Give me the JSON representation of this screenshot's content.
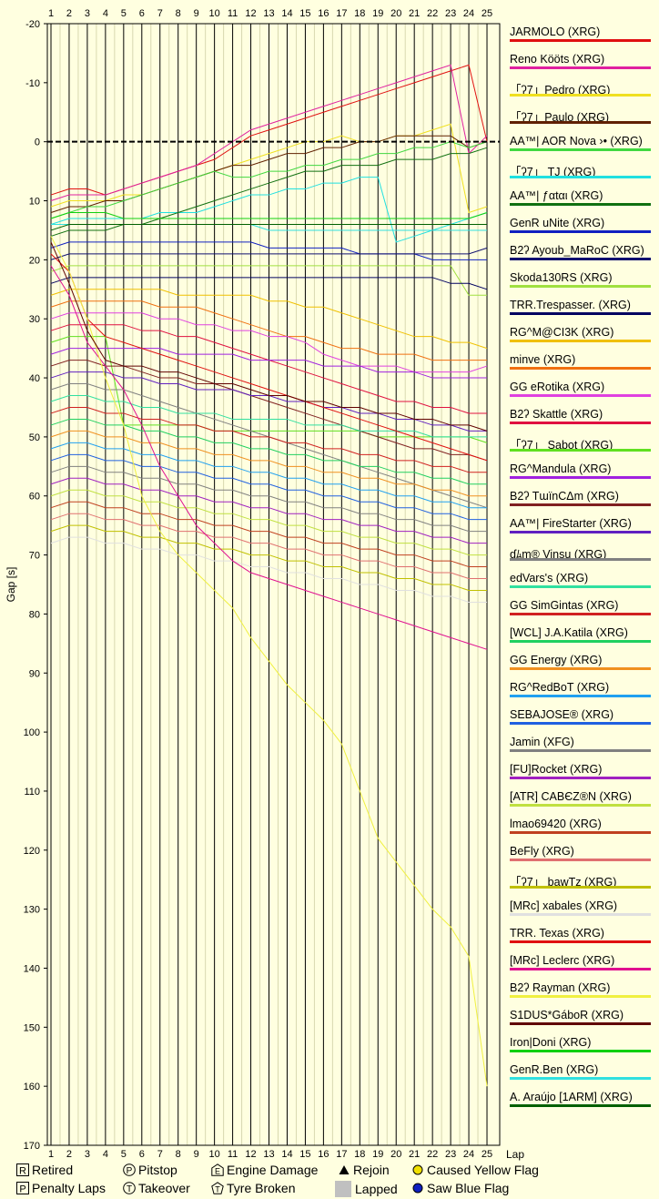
{
  "chart_data": {
    "type": "line",
    "xlabel": "Lap",
    "ylabel": "Gap [s]",
    "x_ticks": [
      1,
      2,
      3,
      4,
      5,
      6,
      7,
      8,
      9,
      10,
      11,
      12,
      13,
      14,
      15,
      16,
      17,
      18,
      19,
      20,
      21,
      22,
      23,
      24,
      25
    ],
    "y_ticks": [
      -20,
      -10,
      0,
      10,
      20,
      30,
      40,
      50,
      60,
      70,
      80,
      90,
      100,
      110,
      120,
      130,
      140,
      150,
      160,
      170
    ],
    "xlim": [
      1,
      25.5
    ],
    "ylim": [
      -20,
      170
    ],
    "series": [
      {
        "name": "JARMOLO (XRG)",
        "color": "#e01010",
        "values": [
          9,
          8,
          8,
          9,
          8,
          7,
          6,
          5,
          4,
          3,
          1,
          -1,
          -2,
          -3,
          -4,
          -5,
          -6,
          -7,
          -8,
          -9,
          -10,
          -11,
          -12,
          -13,
          0
        ]
      },
      {
        "name": "Reno Kööts (XRG)",
        "color": "#e020a0",
        "values": [
          10,
          9,
          9,
          9,
          8,
          7,
          6,
          5,
          4,
          2,
          0,
          -2,
          -3,
          -4,
          -5,
          -6,
          -7,
          -8,
          -9,
          -10,
          -11,
          -12,
          -13,
          2,
          -1
        ]
      },
      {
        "name": "「ʔ7」Pedro (XRG)",
        "color": "#f0e020",
        "values": [
          11,
          10,
          10,
          10,
          9,
          9,
          8,
          7,
          6,
          5,
          4,
          3,
          2,
          1,
          0,
          0,
          -1,
          0,
          0,
          -1,
          -1,
          -2,
          -3,
          12,
          11
        ]
      },
      {
        "name": "「ʔ7」Paulo (XRG)",
        "color": "#602000",
        "values": [
          12,
          11,
          11,
          10,
          10,
          9,
          8,
          7,
          6,
          5,
          4,
          4,
          3,
          2,
          2,
          1,
          1,
          0,
          0,
          -1,
          -1,
          -1,
          -1,
          1,
          0
        ]
      },
      {
        "name": "AA™| AOR Nova ›• (XRG)",
        "color": "#40d840",
        "values": [
          13,
          12,
          11,
          11,
          10,
          9,
          8,
          7,
          6,
          5,
          6,
          6,
          5,
          5,
          4,
          4,
          3,
          3,
          2,
          2,
          1,
          1,
          0,
          1,
          0
        ]
      },
      {
        "name": "「ʔ7」 TJ (XRG)",
        "color": "#20e0e0",
        "values": [
          14,
          13,
          13,
          13,
          13,
          13,
          12,
          12,
          12,
          11,
          10,
          9,
          9,
          8,
          8,
          7,
          7,
          6,
          6,
          17,
          16,
          15,
          14,
          13,
          12
        ]
      },
      {
        "name": "AA™| ƒαtαι (XRG)",
        "color": "#107010",
        "values": [
          16,
          15,
          15,
          15,
          14,
          14,
          13,
          12,
          11,
          10,
          9,
          8,
          7,
          6,
          5,
          5,
          4,
          4,
          4,
          3,
          3,
          3,
          2,
          2,
          1
        ]
      },
      {
        "name": "GenR uNite (XRG)",
        "color": "#1020c0",
        "values": [
          18,
          17,
          17,
          17,
          17,
          17,
          17,
          17,
          17,
          17,
          17,
          17,
          18,
          18,
          18,
          18,
          18,
          19,
          19,
          19,
          19,
          20,
          20,
          20,
          20
        ]
      },
      {
        "name": "B2ʔ Ayoub_MaRoC (XRG)",
        "color": "#101070",
        "values": [
          20,
          19,
          19,
          19,
          19,
          19,
          19,
          19,
          19,
          19,
          19,
          19,
          19,
          19,
          19,
          19,
          19,
          19,
          19,
          19,
          19,
          19,
          19,
          19,
          18
        ]
      },
      {
        "name": "Skoda130RS (XRG)",
        "color": "#a0e040",
        "values": [
          22,
          21,
          21,
          21,
          21,
          21,
          21,
          21,
          21,
          21,
          21,
          21,
          21,
          21,
          21,
          21,
          21,
          21,
          21,
          21,
          21,
          21,
          21,
          26,
          26
        ]
      },
      {
        "name": "TRR.Trespasser. (XRG)",
        "color": "#000060",
        "values": [
          24,
          23,
          23,
          23,
          23,
          23,
          23,
          23,
          23,
          23,
          23,
          23,
          23,
          23,
          23,
          23,
          23,
          23,
          23,
          23,
          23,
          23,
          24,
          24,
          25
        ]
      },
      {
        "name": "RG^M@CI3K (XRG)",
        "color": "#f0c000",
        "values": [
          26,
          25,
          25,
          25,
          25,
          25,
          25,
          26,
          26,
          26,
          26,
          26,
          27,
          27,
          28,
          28,
          29,
          30,
          31,
          32,
          33,
          33,
          34,
          34,
          35
        ]
      },
      {
        "name": "minve (XRG)",
        "color": "#f07010",
        "values": [
          28,
          27,
          27,
          27,
          27,
          27,
          28,
          28,
          28,
          29,
          30,
          31,
          32,
          33,
          33,
          34,
          35,
          35,
          36,
          36,
          36,
          37,
          37,
          37,
          37
        ]
      },
      {
        "name": "GG eRotika (XRG)",
        "color": "#e040e0",
        "values": [
          30,
          29,
          29,
          29,
          29,
          29,
          30,
          30,
          31,
          31,
          32,
          32,
          33,
          33,
          34,
          36,
          37,
          38,
          38,
          38,
          39,
          39,
          39,
          39,
          38
        ]
      },
      {
        "name": "B2ʔ Skattle (XRG)",
        "color": "#e01040",
        "values": [
          32,
          31,
          31,
          31,
          31,
          32,
          32,
          33,
          33,
          34,
          35,
          36,
          37,
          38,
          39,
          40,
          41,
          42,
          43,
          44,
          44,
          45,
          45,
          46,
          46
        ]
      },
      {
        "name": "「ʔ7」 Sabot (XRG)",
        "color": "#60e020",
        "values": [
          34,
          33,
          33,
          33,
          48,
          48,
          48,
          48,
          48,
          49,
          49,
          49,
          49,
          49,
          49,
          49,
          49,
          49,
          50,
          50,
          50,
          50,
          50,
          50,
          51
        ]
      },
      {
        "name": "RG^Mandula (XRG)",
        "color": "#a020e0",
        "values": [
          36,
          35,
          35,
          35,
          35,
          35,
          35,
          36,
          36,
          36,
          36,
          37,
          37,
          37,
          37,
          38,
          38,
          38,
          39,
          39,
          39,
          40,
          40,
          40,
          40
        ]
      },
      {
        "name": "B2ʔ TɯïnCΔm (XRG)",
        "color": "#802020",
        "values": [
          38,
          37,
          37,
          38,
          38,
          39,
          40,
          40,
          41,
          41,
          42,
          43,
          44,
          45,
          46,
          47,
          48,
          49,
          50,
          51,
          52,
          52,
          53,
          53,
          54
        ]
      },
      {
        "name": "AA™| FireStarter (XRG)",
        "color": "#6020c0",
        "values": [
          40,
          39,
          39,
          39,
          40,
          40,
          41,
          41,
          42,
          42,
          42,
          43,
          43,
          44,
          44,
          45,
          45,
          46,
          46,
          47,
          47,
          48,
          48,
          49,
          49
        ]
      },
      {
        "name": "ɗﾑm® Vinsu (XRG)",
        "color": "#808080",
        "values": [
          42,
          41,
          41,
          42,
          42,
          43,
          44,
          45,
          46,
          47,
          48,
          49,
          50,
          51,
          52,
          53,
          54,
          55,
          56,
          57,
          58,
          59,
          60,
          61,
          62
        ]
      },
      {
        "name": "edVars's (XRG)",
        "color": "#30e0a0",
        "values": [
          44,
          43,
          43,
          44,
          44,
          45,
          45,
          46,
          46,
          46,
          47,
          47,
          47,
          47,
          48,
          48,
          48,
          49,
          49,
          49,
          49,
          50,
          50,
          50,
          50
        ]
      },
      {
        "name": "GG SimGintas (XRG)",
        "color": "#d02020",
        "values": [
          46,
          45,
          45,
          46,
          46,
          47,
          47,
          48,
          48,
          49,
          49,
          50,
          50,
          51,
          51,
          52,
          52,
          53,
          53,
          54,
          54,
          55,
          55,
          56,
          56
        ]
      },
      {
        "name": "[WCL] J.A.Katila (XRG)",
        "color": "#20d060",
        "values": [
          48,
          47,
          47,
          48,
          48,
          49,
          49,
          50,
          50,
          51,
          51,
          52,
          52,
          53,
          53,
          54,
          54,
          55,
          55,
          56,
          56,
          57,
          57,
          58,
          58
        ]
      },
      {
        "name": "GG Energy (XRG)",
        "color": "#f09020",
        "values": [
          50,
          49,
          49,
          50,
          50,
          51,
          51,
          52,
          52,
          53,
          53,
          54,
          54,
          55,
          55,
          56,
          56,
          57,
          57,
          58,
          58,
          59,
          59,
          60,
          60
        ]
      },
      {
        "name": "RG^RedBoT (XRG)",
        "color": "#20a0f0",
        "values": [
          52,
          51,
          51,
          52,
          52,
          53,
          53,
          54,
          54,
          55,
          55,
          56,
          56,
          57,
          57,
          58,
          58,
          59,
          59,
          60,
          60,
          61,
          61,
          62,
          62
        ]
      },
      {
        "name": "SEBAJOSE® (XRG)",
        "color": "#2060e0",
        "values": [
          54,
          53,
          53,
          54,
          54,
          55,
          55,
          56,
          56,
          57,
          57,
          58,
          58,
          59,
          59,
          60,
          60,
          61,
          61,
          62,
          62,
          63,
          63,
          64,
          64
        ]
      },
      {
        "name": "Jamin (XFG)",
        "color": "#808080",
        "values": [
          56,
          55,
          55,
          56,
          56,
          57,
          57,
          58,
          58,
          59,
          59,
          60,
          60,
          61,
          61,
          62,
          62,
          63,
          63,
          64,
          64,
          65,
          65,
          66,
          66
        ]
      },
      {
        "name": "[FU]Rocket (XRG)",
        "color": "#a020c0",
        "values": [
          58,
          57,
          57,
          58,
          58,
          59,
          59,
          60,
          60,
          61,
          61,
          62,
          62,
          63,
          63,
          64,
          64,
          65,
          65,
          66,
          66,
          67,
          67,
          68,
          68
        ]
      },
      {
        "name": "[ATR] CABЄZ®N (XRG)",
        "color": "#c0e040",
        "values": [
          60,
          59,
          59,
          60,
          60,
          61,
          61,
          62,
          62,
          63,
          63,
          64,
          64,
          65,
          65,
          66,
          66,
          67,
          67,
          68,
          68,
          69,
          69,
          70,
          70
        ]
      },
      {
        "name": "lmao69420 (XRG)",
        "color": "#c04020",
        "values": [
          62,
          61,
          61,
          62,
          62,
          63,
          63,
          64,
          64,
          65,
          65,
          66,
          66,
          67,
          67,
          68,
          68,
          69,
          69,
          70,
          70,
          71,
          71,
          72,
          72
        ]
      },
      {
        "name": "BeFly (XRG)",
        "color": "#e07070",
        "values": [
          64,
          63,
          63,
          64,
          64,
          65,
          65,
          66,
          66,
          67,
          67,
          68,
          68,
          69,
          69,
          70,
          70,
          71,
          71,
          72,
          72,
          73,
          73,
          74,
          74
        ]
      },
      {
        "name": "「ʔ7」 bawTz (XRG)",
        "color": "#c0c000",
        "values": [
          66,
          65,
          65,
          66,
          66,
          67,
          67,
          68,
          68,
          69,
          69,
          70,
          70,
          71,
          71,
          72,
          72,
          73,
          73,
          74,
          74,
          75,
          75,
          76,
          76
        ]
      },
      {
        "name": "[MRc] xabales (XRG)",
        "color": "#e0e0e0",
        "values": [
          68,
          67,
          67,
          68,
          68,
          69,
          69,
          70,
          70,
          71,
          71,
          72,
          72,
          73,
          73,
          74,
          74,
          75,
          75,
          76,
          76,
          77,
          77,
          78,
          78
        ]
      },
      {
        "name": "TRR. Texas (XRG)",
        "color": "#e01010",
        "values": [
          19,
          22,
          30,
          33,
          34,
          35,
          36,
          37,
          38,
          39,
          40,
          41,
          42,
          43,
          44,
          45,
          46,
          47,
          48,
          49,
          50,
          51,
          52,
          53,
          54
        ]
      },
      {
        "name": "[MRc] Leclerc (XRG)",
        "color": "#e01090",
        "values": [
          21,
          26,
          34,
          38,
          42,
          48,
          55,
          60,
          65,
          68,
          71,
          73,
          74,
          75,
          76,
          77,
          78,
          79,
          80,
          81,
          82,
          83,
          84,
          85,
          86
        ]
      },
      {
        "name": "B2ʔ Rayman (XRG)",
        "color": "#f0f040",
        "values": [
          16,
          22,
          30,
          40,
          48,
          60,
          66,
          70,
          73,
          76,
          79,
          84,
          88,
          92,
          95,
          98,
          102,
          110,
          118,
          122,
          126,
          130,
          133,
          138,
          160
        ]
      },
      {
        "name": "S1DUS*GáboR (XRG)",
        "color": "#600000",
        "values": [
          17,
          24,
          32,
          37,
          38,
          38,
          39,
          39,
          40,
          41,
          41,
          42,
          43,
          43,
          44,
          44,
          45,
          45,
          46,
          46,
          47,
          47,
          48,
          48,
          49
        ]
      },
      {
        "name": "Iron|Doni (XRG)",
        "color": "#10d010",
        "values": [
          13,
          12,
          12,
          12,
          13,
          13,
          13,
          13,
          13,
          13,
          13,
          13,
          13,
          13,
          13,
          13,
          13,
          13,
          13,
          13,
          13,
          13,
          13,
          13,
          12
        ]
      },
      {
        "name": "GenR.Ben (XRG)",
        "color": "#30e0e0",
        "values": [
          14,
          14,
          14,
          14,
          14,
          14,
          14,
          14,
          14,
          14,
          14,
          14,
          15,
          15,
          15,
          15,
          15,
          15,
          15,
          15,
          15,
          15,
          15,
          15,
          15
        ]
      },
      {
        "name": "A. Araújo [1ARM] (XRG)",
        "color": "#006000",
        "values": [
          15,
          14,
          14,
          14,
          14,
          14,
          14,
          14,
          14,
          14,
          14,
          14,
          14,
          14,
          14,
          14,
          14,
          14,
          14,
          14,
          14,
          14,
          14,
          14,
          14
        ]
      }
    ]
  },
  "legend": {
    "retired": "Retired",
    "pitstop": "Pitstop",
    "engine_damage": "Engine Damage",
    "rejoin": "Rejoin",
    "caused_yellow": "Caused Yellow Flag",
    "penalty_laps": "Penalty Laps",
    "takeover": "Takeover",
    "tyre_broken": "Tyre Broken",
    "lapped": "Lapped",
    "saw_blue": "Saw Blue Flag",
    "retired_sym": "R",
    "pitstop_sym": "P",
    "engine_sym": "E",
    "penalty_sym": "P",
    "takeover_sym": "T",
    "tyre_sym": "T"
  },
  "colors": {
    "background": "#ffffe0",
    "yellow_flag": "#f0e000",
    "blue_flag": "#1020c0",
    "lapped": "#c0c0c0"
  }
}
